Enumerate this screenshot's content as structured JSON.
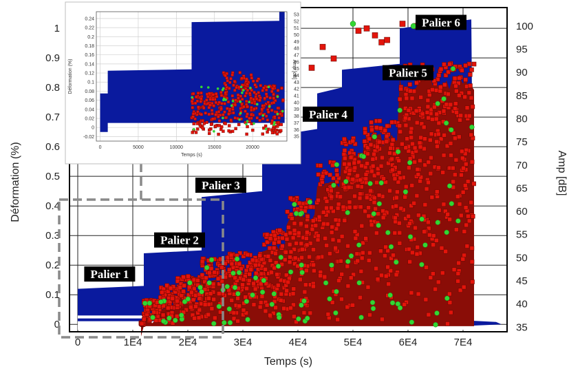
{
  "chart_data": {
    "type": "scatter",
    "xlabel": "Temps (s)",
    "ylabel_left": "Déformation (%)",
    "ylabel_right": "Amp [dB]",
    "x_ticks": [
      "0",
      "1E4",
      "2E4",
      "3E4",
      "4E4",
      "5E4",
      "6E4",
      "7E4"
    ],
    "x_tick_values": [
      0,
      10000,
      20000,
      30000,
      40000,
      50000,
      60000,
      70000
    ],
    "xlim": [
      -1500,
      78000
    ],
    "y_left_ticks": [
      "0",
      "0.1",
      "0.2",
      "0.3",
      "0.4",
      "0.5",
      "0.6",
      "0.7",
      "0.8",
      "0.9",
      "1"
    ],
    "y_left_tick_values": [
      0,
      0.1,
      0.2,
      0.3,
      0.4,
      0.5,
      0.6,
      0.7,
      0.8,
      0.9,
      1.0
    ],
    "y_left_lim": [
      -0.025,
      1.07
    ],
    "y_right_ticks": [
      "35",
      "40",
      "45",
      "50",
      "55",
      "60",
      "65",
      "70",
      "75",
      "80",
      "85",
      "90",
      "95",
      "100"
    ],
    "y_right_tick_values": [
      35,
      40,
      45,
      50,
      55,
      60,
      65,
      70,
      75,
      80,
      85,
      90,
      95,
      100
    ],
    "y_right_lim": [
      34,
      104
    ],
    "grid": true,
    "series": [
      {
        "name": "Déformation",
        "color": "#0a1a9e",
        "points": [
          [
            0,
            0
          ],
          [
            0,
            0.12
          ],
          [
            12000,
            0.13
          ],
          [
            12000,
            0.24
          ],
          [
            22500,
            0.25
          ],
          [
            22500,
            0.43
          ],
          [
            33500,
            0.45
          ],
          [
            33500,
            0.63
          ],
          [
            43500,
            0.66
          ],
          [
            43500,
            0.78
          ],
          [
            48000,
            0.8
          ],
          [
            48000,
            0.86
          ],
          [
            58500,
            0.88
          ],
          [
            58500,
            1.0
          ],
          [
            71500,
            1.03
          ],
          [
            72000,
            0.01
          ],
          [
            77000,
            0.0
          ]
        ]
      },
      {
        "name": "Amplitude (rouge)",
        "color": "#e3140b",
        "marker": "square"
      },
      {
        "name": "Amplitude (vert)",
        "color": "#33d633",
        "marker": "circle"
      }
    ],
    "annotations": [
      "Palier 1",
      "Palier 2",
      "Palier 3",
      "Palier 4",
      "Palier 5",
      "Palier 6"
    ],
    "annotation_positions": [
      [
        5800,
        0.17
      ],
      [
        18500,
        0.285
      ],
      [
        26000,
        0.47
      ],
      [
        45500,
        0.71
      ],
      [
        60000,
        0.85
      ],
      [
        66000,
        1.02
      ]
    ],
    "inset": {
      "xlabel": "Temps (s)",
      "ylabel_left": "Déformation (%)",
      "ylabel_right": "Amp [dB]",
      "x_ticks": [
        "0",
        "5000",
        "10000",
        "15000",
        "20000"
      ],
      "x_tick_values": [
        0,
        5000,
        10000,
        15000,
        20000
      ],
      "xlim": [
        -500,
        24500
      ],
      "y_left_ticks": [
        "-0.02",
        "0",
        "0.02",
        "0.04",
        "0.06",
        "0.08",
        "0.1",
        "0.12",
        "0.14",
        "0.16",
        "0.18",
        "0.2",
        "0.22",
        "0.24"
      ],
      "y_left_tick_values": [
        -0.02,
        0,
        0.02,
        0.04,
        0.06,
        0.08,
        0.1,
        0.12,
        0.14,
        0.16,
        0.18,
        0.2,
        0.22,
        0.24
      ],
      "y_left_lim": [
        -0.03,
        0.255
      ],
      "y_right_ticks": [
        "35",
        "36",
        "37",
        "38",
        "39",
        "40",
        "41",
        "42",
        "43",
        "44",
        "45",
        "46",
        "47",
        "48",
        "49",
        "50",
        "51",
        "52",
        "53"
      ],
      "y_right_tick_values": [
        35,
        36,
        37,
        38,
        39,
        40,
        41,
        42,
        43,
        44,
        45,
        46,
        47,
        48,
        49,
        50,
        51,
        52,
        53
      ],
      "y_right_lim": [
        34.3,
        53.4
      ],
      "strain_points": [
        [
          0,
          0
        ],
        [
          0,
          0.12
        ],
        [
          12000,
          0.13
        ],
        [
          12000,
          0.235
        ],
        [
          24000,
          0.245
        ]
      ]
    }
  }
}
